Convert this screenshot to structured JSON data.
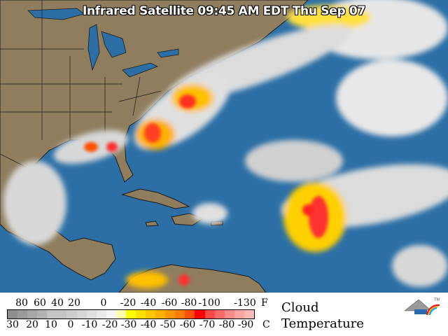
{
  "title": "Infrared Satellite 09:45 AM EDT Thu Sep 07",
  "colors": {
    "ocean": "#2b6fa6",
    "land": "#8f7d5e",
    "border": "#1a1a1a"
  },
  "legend": {
    "fahrenheit_labels": [
      "80",
      "60",
      "40",
      "20",
      "0",
      "-20",
      "-40",
      "-60",
      "-80",
      "-100",
      "-130"
    ],
    "fahrenheit_unit": "F",
    "celsius_labels": [
      "30",
      "20",
      "10",
      "0",
      "-10",
      "-20",
      "-30",
      "-40",
      "-50",
      "-60",
      "-70",
      "-80",
      "-90"
    ],
    "celsius_unit": "C",
    "caption_line1": "Cloud",
    "caption_line2": "Temperature",
    "scale_colors": [
      "#8e8e8e",
      "#9a9a9a",
      "#a6a6a6",
      "#b2b2b2",
      "#c4c4c4",
      "#c4c4c4",
      "#cdcdcd",
      "#d6d6d6",
      "#e0e0e0",
      "#eaeaea",
      "#f5f5f5",
      "#ffffa8",
      "#ffff00",
      "#ffe000",
      "#ffc800",
      "#ffb000",
      "#ff9800",
      "#ff7c00",
      "#ff5000",
      "#ff0000",
      "#ff4848",
      "#ff6a6a",
      "#ff8a8a",
      "#ffa2a2",
      "#ffb8b8"
    ],
    "logo_text": "TM"
  }
}
